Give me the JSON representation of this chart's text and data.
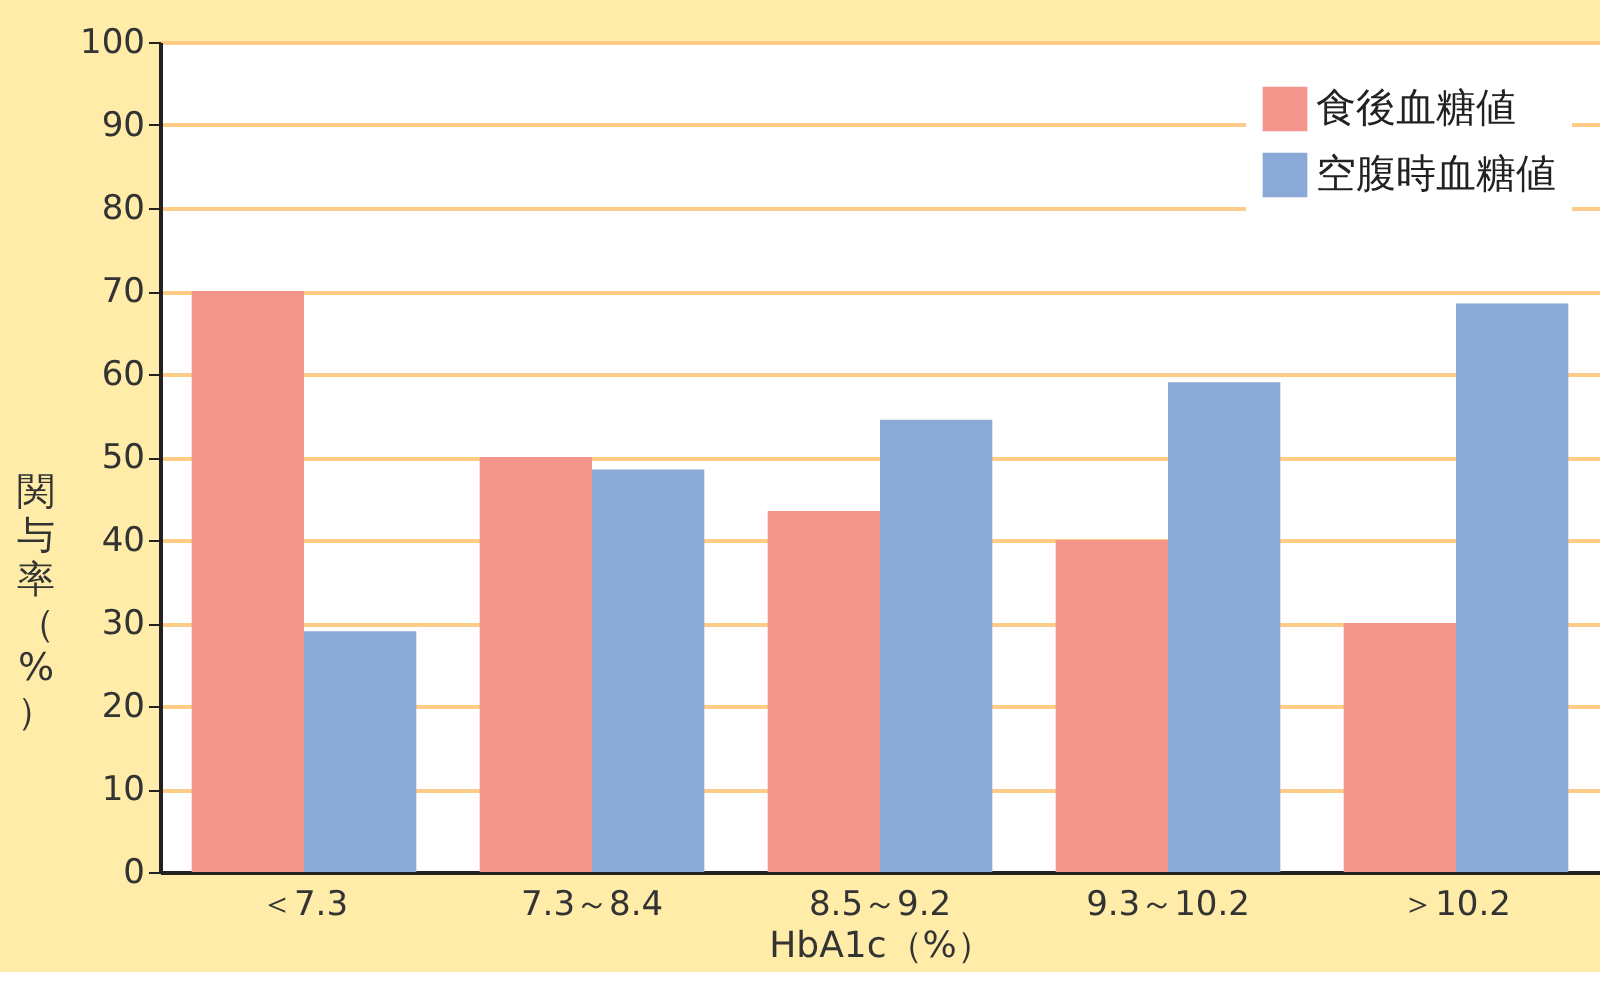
{
  "chart_data": {
    "type": "bar",
    "xlabel": "HbA1c（%）",
    "ylabel": "関与率（%）",
    "categories": [
      "＜7.3",
      "7.3～8.4",
      "8.5～9.2",
      "9.3～10.2",
      "＞10.2"
    ],
    "series": [
      {
        "name": "食後血糖値",
        "color": "#f3958b",
        "values": [
          70,
          50,
          43.5,
          40,
          30
        ]
      },
      {
        "name": "空腹時血糖値",
        "color": "#8aa9d7",
        "values": [
          29,
          48.5,
          54.5,
          59,
          68.5
        ]
      }
    ],
    "ylim": [
      0,
      100
    ],
    "yticks": [
      0,
      10,
      20,
      30,
      40,
      50,
      60,
      70,
      80,
      90,
      100
    ],
    "grid": "y",
    "legend": "top right"
  }
}
